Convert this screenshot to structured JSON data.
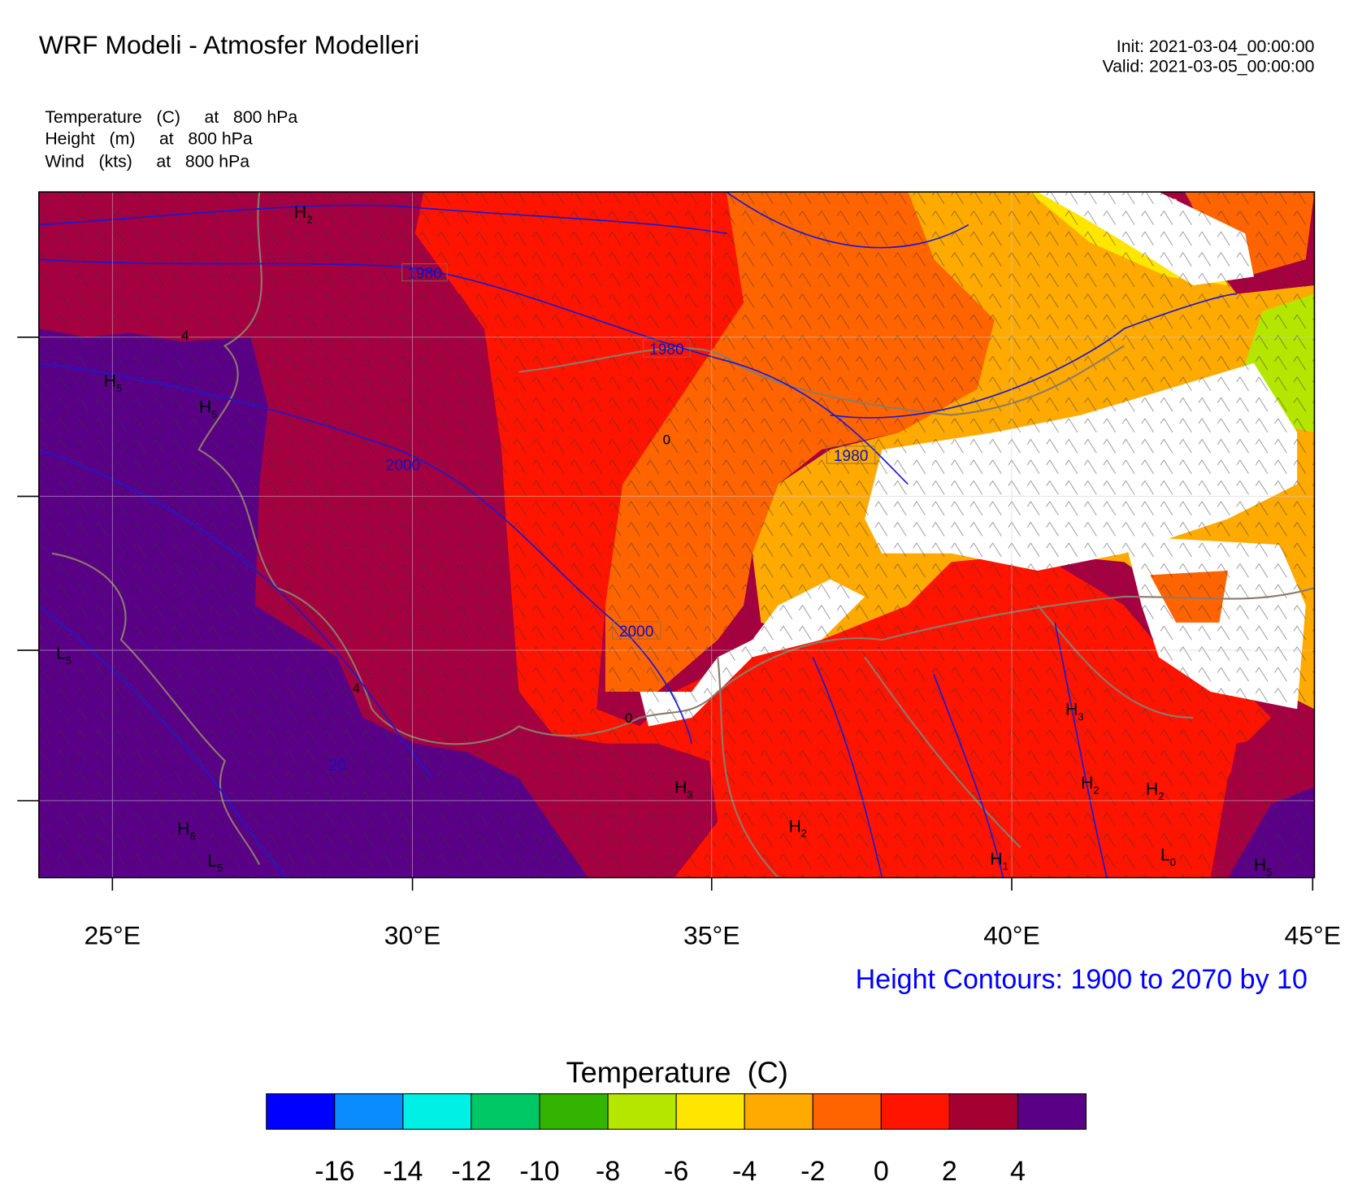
{
  "header": {
    "title": "WRF Modeli - Atmosfer Modelleri",
    "init": "Init: 2021-03-04_00:00:00",
    "valid": "Valid: 2021-03-05_00:00:00",
    "fields": [
      "Temperature   (C)     at   800 hPa",
      "Height   (m)     at   800 hPa",
      "Wind   (kts)     at   800 hPa"
    ]
  },
  "map": {
    "x_ticks": [
      "25°E",
      "30°E",
      "35°E",
      "40°E",
      "45°E"
    ],
    "height_labels": [
      "1980",
      "1980",
      "1980",
      "2000",
      "2000",
      "20"
    ],
    "temperature_labels": [
      "4",
      "4",
      "0",
      "0"
    ],
    "centers": [
      {
        "letter": "H",
        "sub": "2"
      },
      {
        "letter": "H",
        "sub": "5"
      },
      {
        "letter": "H",
        "sub": "5"
      },
      {
        "letter": "L",
        "sub": "5"
      },
      {
        "letter": "H",
        "sub": "6"
      },
      {
        "letter": "L",
        "sub": "5"
      },
      {
        "letter": "H",
        "sub": "3"
      },
      {
        "letter": "H",
        "sub": "2"
      },
      {
        "letter": "H",
        "sub": "1"
      },
      {
        "letter": "L",
        "sub": "0"
      },
      {
        "letter": "H",
        "sub": "2"
      },
      {
        "letter": "H",
        "sub": "2"
      },
      {
        "letter": "H",
        "sub": "3"
      },
      {
        "letter": "H",
        "sub": "5"
      }
    ],
    "contour_note": "Height Contours: 1900 to 2070 by 10"
  },
  "colorbar": {
    "title": "Temperature  (C)",
    "colors": [
      "#0000ff",
      "#0a8cff",
      "#00f0e6",
      "#00c864",
      "#32b400",
      "#b4e600",
      "#ffe600",
      "#ffaa00",
      "#ff6400",
      "#ff1400",
      "#a50032",
      "#5a0087"
    ],
    "labels": [
      "-16",
      "-14",
      "-12",
      "-10",
      "-8",
      "-6",
      "-4",
      "-2",
      "0",
      "2",
      "4"
    ]
  }
}
